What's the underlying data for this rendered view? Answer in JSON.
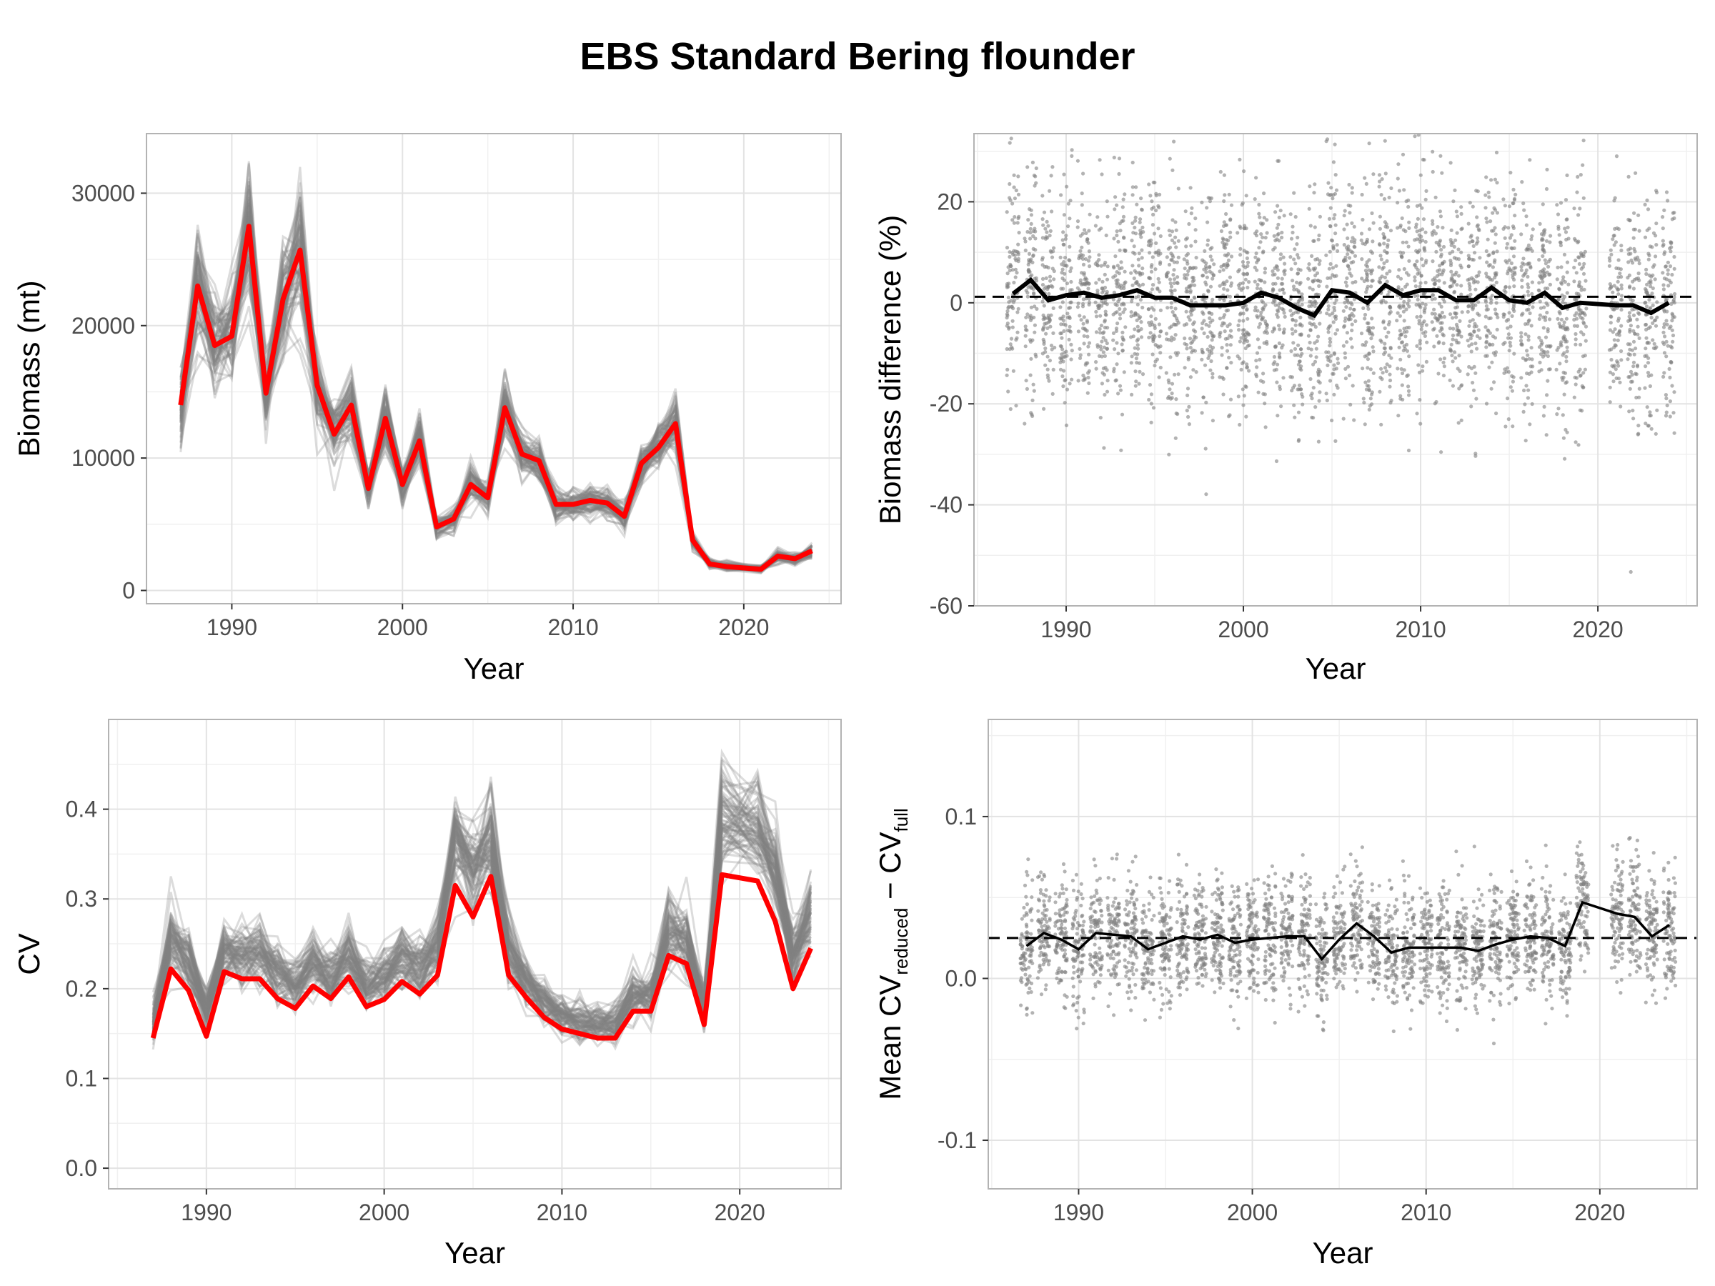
{
  "title": "EBS Standard Bering flounder",
  "chart_data": [
    {
      "id": "biomass",
      "type": "line",
      "title": "",
      "xlabel": "Year",
      "ylabel": "Biomass (mt)",
      "xlim": [
        1985,
        2025.7
      ],
      "ylim": [
        -1000,
        34500
      ],
      "xticks": [
        1990,
        2000,
        2010,
        2020
      ],
      "yticks": [
        0,
        10000,
        20000,
        30000
      ],
      "ytick_labels": [
        "0",
        "10000",
        "20000",
        "30000"
      ],
      "grid": true,
      "x": [
        1987,
        1988,
        1989,
        1990,
        1991,
        1992,
        1993,
        1994,
        1995,
        1996,
        1997,
        1998,
        1999,
        2000,
        2001,
        2002,
        2003,
        2004,
        2005,
        2006,
        2007,
        2008,
        2009,
        2010,
        2011,
        2012,
        2013,
        2014,
        2015,
        2016,
        2017,
        2018,
        2019,
        2021,
        2022,
        2023,
        2024
      ],
      "series": [
        {
          "role": "full",
          "color": "#ff0000",
          "values": [
            14000,
            23000,
            18500,
            19200,
            27500,
            14900,
            22000,
            25700,
            15500,
            11800,
            14000,
            7700,
            13000,
            8000,
            11300,
            4800,
            5400,
            8000,
            7000,
            13800,
            10300,
            9800,
            6500,
            6500,
            6800,
            6600,
            5600,
            9600,
            10800,
            12600,
            3800,
            2000,
            1800,
            1600,
            2600,
            2400,
            3000
          ]
        },
        {
          "role": "replicates",
          "color": "#808080",
          "values": [
            14000,
            23000,
            18500,
            19200,
            27500,
            14900,
            22000,
            25700,
            15500,
            11800,
            14000,
            7700,
            13000,
            8000,
            11300,
            4800,
            5400,
            8000,
            7000,
            13800,
            10300,
            9800,
            6500,
            6500,
            6800,
            6600,
            5600,
            9600,
            10800,
            12600,
            3800,
            2000,
            1800,
            1600,
            2600,
            2400,
            3000
          ],
          "count": 80,
          "spread": 0.1
        }
      ]
    },
    {
      "id": "biomass-diff",
      "type": "scatter",
      "title": "",
      "xlabel": "Year",
      "ylabel": "Biomass difference (%)",
      "xlim": [
        1984.8,
        2025.6
      ],
      "ylim": [
        -60,
        33.5
      ],
      "xticks": [
        1990,
        2000,
        2010,
        2020
      ],
      "yticks": [
        -60,
        -40,
        -20,
        0,
        20
      ],
      "ytick_labels": [
        "-60",
        "-40",
        "-20",
        "0",
        "20"
      ],
      "grid": true,
      "reference_line": 1.2,
      "x": [
        1987,
        1988,
        1989,
        1990,
        1991,
        1992,
        1993,
        1994,
        1995,
        1996,
        1997,
        1998,
        1999,
        2000,
        2001,
        2002,
        2003,
        2004,
        2005,
        2006,
        2007,
        2008,
        2009,
        2010,
        2011,
        2012,
        2013,
        2014,
        2015,
        2016,
        2017,
        2018,
        2019,
        2021,
        2022,
        2023,
        2024
      ],
      "mean_line": [
        1.8,
        4.5,
        0.5,
        1.5,
        2.0,
        1.0,
        1.5,
        2.5,
        1.0,
        1.0,
        -0.5,
        -0.5,
        -0.5,
        0,
        2.0,
        1.0,
        -1.0,
        -2.5,
        2.5,
        2.0,
        0,
        3.5,
        1.5,
        2.5,
        2.5,
        0.5,
        0.5,
        3.0,
        0.5,
        0,
        2.0,
        -1.0,
        0,
        -0.5,
        -0.5,
        -2.0,
        0
      ],
      "points_per_year": 95,
      "point_spread": 11
    },
    {
      "id": "cv",
      "type": "line",
      "title": "",
      "xlabel": "Year",
      "ylabel": "CV",
      "xlim": [
        1984.5,
        2025.7
      ],
      "ylim": [
        -0.023,
        0.5
      ],
      "xticks": [
        1990,
        2000,
        2010,
        2020
      ],
      "yticks": [
        0.0,
        0.1,
        0.2,
        0.3,
        0.4
      ],
      "ytick_labels": [
        "0.0",
        "0.1",
        "0.2",
        "0.3",
        "0.4"
      ],
      "grid": true,
      "x": [
        1987,
        1988,
        1989,
        1990,
        1991,
        1992,
        1993,
        1994,
        1995,
        1996,
        1997,
        1998,
        1999,
        2000,
        2001,
        2002,
        2003,
        2004,
        2005,
        2006,
        2007,
        2008,
        2009,
        2010,
        2011,
        2012,
        2013,
        2014,
        2015,
        2016,
        2017,
        2018,
        2019,
        2021,
        2022,
        2023,
        2024
      ],
      "series": [
        {
          "role": "full",
          "color": "#ff0000",
          "values": [
            0.145,
            0.222,
            0.198,
            0.147,
            0.219,
            0.211,
            0.211,
            0.189,
            0.178,
            0.203,
            0.189,
            0.213,
            0.18,
            0.188,
            0.208,
            0.194,
            0.215,
            0.315,
            0.28,
            0.325,
            0.215,
            0.19,
            0.168,
            0.155,
            0.15,
            0.145,
            0.145,
            0.175,
            0.175,
            0.237,
            0.228,
            0.16,
            0.327,
            0.32,
            0.275,
            0.2,
            0.245
          ]
        },
        {
          "role": "replicates",
          "color": "#808080",
          "values": [
            0.16,
            0.255,
            0.23,
            0.175,
            0.245,
            0.24,
            0.24,
            0.215,
            0.205,
            0.23,
            0.215,
            0.24,
            0.205,
            0.215,
            0.235,
            0.22,
            0.25,
            0.37,
            0.33,
            0.37,
            0.245,
            0.21,
            0.185,
            0.17,
            0.165,
            0.16,
            0.16,
            0.195,
            0.195,
            0.265,
            0.255,
            0.18,
            0.39,
            0.38,
            0.33,
            0.235,
            0.285
          ],
          "count": 80,
          "spread": 0.08
        }
      ]
    },
    {
      "id": "mean-cv-diff",
      "type": "scatter",
      "title": "",
      "xlabel": "Year",
      "ylabel_parts": [
        "Mean CV",
        "reduced",
        " − CV",
        "full"
      ],
      "xlim": [
        1984.8,
        2025.6
      ],
      "ylim": [
        -0.13,
        0.16
      ],
      "xticks": [
        1990,
        2000,
        2010,
        2020
      ],
      "yticks": [
        -0.1,
        0.0,
        0.1
      ],
      "ytick_labels": [
        "-0.1",
        "0.0",
        "0.1"
      ],
      "grid": true,
      "reference_line": 0.025,
      "x": [
        1987,
        1988,
        1989,
        1990,
        1991,
        1992,
        1993,
        1994,
        1995,
        1996,
        1997,
        1998,
        1999,
        2000,
        2001,
        2002,
        2003,
        2004,
        2005,
        2006,
        2007,
        2008,
        2009,
        2010,
        2011,
        2012,
        2013,
        2014,
        2015,
        2016,
        2017,
        2018,
        2019,
        2021,
        2022,
        2023,
        2024
      ],
      "mean_line": [
        0.02,
        0.028,
        0.024,
        0.018,
        0.028,
        0.027,
        0.026,
        0.018,
        0.022,
        0.026,
        0.024,
        0.027,
        0.022,
        0.024,
        0.025,
        0.026,
        0.026,
        0.012,
        0.024,
        0.034,
        0.026,
        0.016,
        0.019,
        0.019,
        0.019,
        0.019,
        0.017,
        0.021,
        0.024,
        0.026,
        0.025,
        0.02,
        0.047,
        0.04,
        0.038,
        0.026,
        0.033
      ],
      "points_per_year": 95,
      "point_spread": 0.018
    }
  ]
}
